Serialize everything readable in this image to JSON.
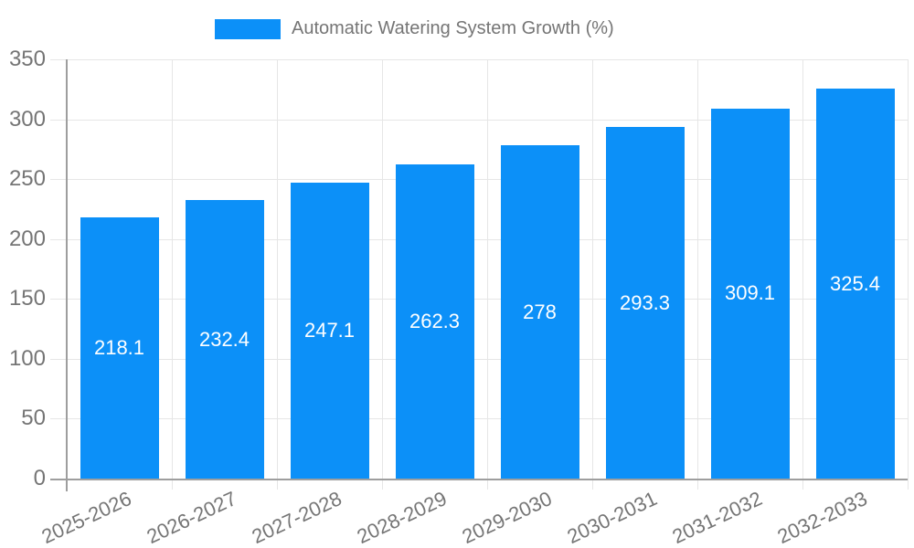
{
  "legend": {
    "label": "Automatic Watering System Growth (%)"
  },
  "chart_data": {
    "type": "bar",
    "title": "Automatic Watering System Growth (%)",
    "categories": [
      "2025-2026",
      "2026-2027",
      "2027-2028",
      "2028-2029",
      "2029-2030",
      "2030-2031",
      "2031-2032",
      "2032-2033"
    ],
    "values": [
      218.1,
      232.4,
      247.1,
      262.3,
      278,
      293.3,
      309.1,
      325.4
    ],
    "value_labels": [
      "218.1",
      "232.4",
      "247.1",
      "262.3",
      "278",
      "293.3",
      "309.1",
      "325.4"
    ],
    "xlabel": "",
    "ylabel": "",
    "ylim": [
      0,
      350
    ],
    "ytick_step": 50,
    "yticks": [
      0,
      50,
      100,
      150,
      200,
      250,
      300,
      350
    ],
    "grid": "horizontal and vertical, light gray",
    "legend_position": "top-center",
    "x_label_rotation_deg": -25,
    "bar_color": "#0c90f8",
    "value_label_color": "#ffffff",
    "axis_text_color": "#757575",
    "gridline_color": "#e6e6e6",
    "axis_line_color": "#9e9e9e"
  }
}
